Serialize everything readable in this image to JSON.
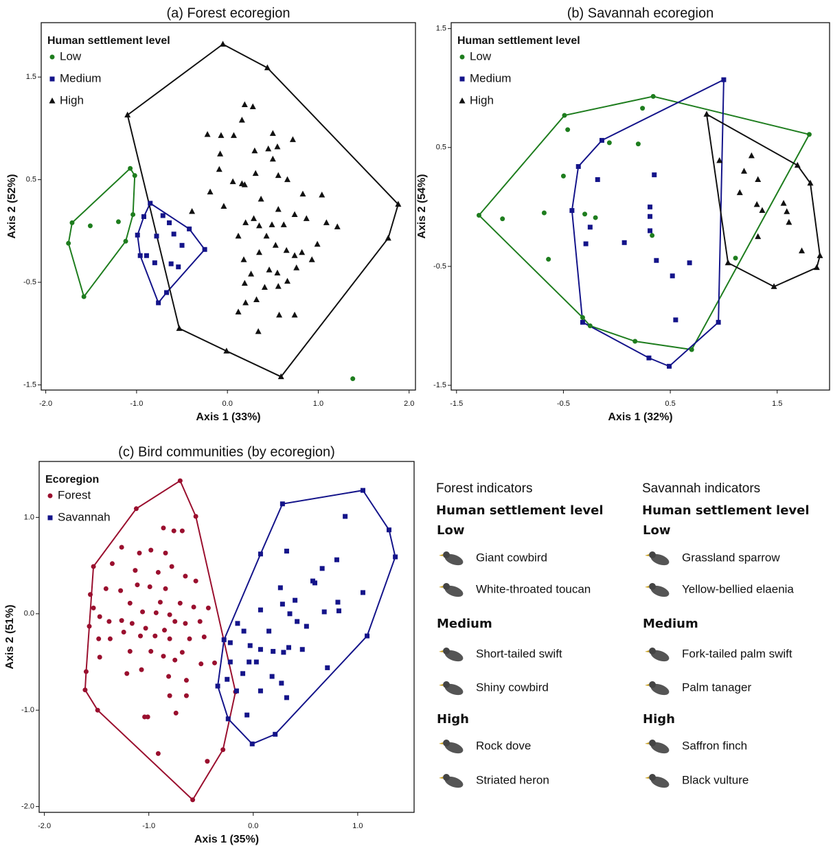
{
  "chart_data": [
    {
      "type": "scatter",
      "title": "(a) Forest ecoregion",
      "x_label": "Axis 1 (33%)",
      "y_label": "Axis 2 (52%)",
      "legend_title": "Human settlement level",
      "xlim": [
        -2.05,
        2.07
      ],
      "ylim": [
        -1.55,
        2.03
      ],
      "xticks": [
        {
          "value": -2,
          "label": "-2.0"
        },
        {
          "value": -1,
          "label": "-1.0"
        },
        {
          "value": 0,
          "label": "0.0"
        },
        {
          "value": 1,
          "label": "1.0"
        },
        {
          "value": 2,
          "label": "2.0"
        }
      ],
      "yticks": [
        1.5,
        0.5,
        -0.5,
        -1.5
      ],
      "series": [
        {
          "name": "Low",
          "color": "#1e7d1e",
          "marker": "circle",
          "x": [
            -1.07,
            -1.02,
            -1.04,
            -1.2,
            -1.51,
            -1.71,
            -1.75,
            -1.12,
            -1.58,
            1.38
          ],
          "y": [
            0.61,
            0.54,
            0.16,
            0.09,
            0.05,
            0.08,
            -0.12,
            -0.1,
            -0.64,
            -1.44
          ],
          "hull_x": [
            -1.07,
            -1.02,
            -1.04,
            -1.12,
            -1.58,
            -1.75,
            -1.71
          ],
          "hull_y": [
            0.61,
            0.54,
            0.16,
            -0.1,
            -0.64,
            -0.12,
            0.08
          ]
        },
        {
          "name": "Medium",
          "color": "#14148a",
          "marker": "square",
          "x": [
            -0.85,
            -0.92,
            -0.71,
            -0.64,
            -0.42,
            -0.99,
            -0.78,
            -0.59,
            -0.5,
            -0.25,
            -0.96,
            -0.89,
            -0.8,
            -0.62,
            -0.54,
            -0.67,
            -0.76
          ],
          "y": [
            0.27,
            0.14,
            0.15,
            0.08,
            0.02,
            -0.04,
            -0.05,
            -0.03,
            -0.14,
            -0.18,
            -0.24,
            -0.24,
            -0.31,
            -0.32,
            -0.35,
            -0.6,
            -0.7
          ],
          "hull_x": [
            -0.85,
            -0.42,
            -0.25,
            -0.67,
            -0.76,
            -0.96,
            -0.99,
            -0.92
          ],
          "hull_y": [
            0.27,
            0.02,
            -0.18,
            -0.6,
            -0.7,
            -0.24,
            -0.04,
            0.14
          ]
        },
        {
          "name": "High",
          "color": "#111111",
          "marker": "triangle",
          "x": [
            -0.05,
            0.44,
            1.88,
            1.77,
            0.59,
            -0.01,
            -0.53,
            -1.1,
            0.19,
            0.28,
            0.16,
            -0.22,
            -0.07,
            0.07,
            0.5,
            0.3,
            0.45,
            0.55,
            0.72,
            -0.08,
            0.5,
            -0.09,
            0.06,
            0.16,
            0.19,
            0.56,
            0.31,
            0.66,
            0.37,
            -0.19,
            0.83,
            1.04,
            -0.39,
            -0.04,
            0.2,
            0.35,
            0.49,
            0.62,
            0.56,
            0.74,
            0.87,
            1.09,
            1.21,
            0.29,
            0.12,
            0.43,
            0.53,
            0.65,
            0.74,
            0.82,
            0.18,
            0.35,
            0.93,
            0.99,
            0.46,
            0.55,
            0.26,
            0.19,
            0.41,
            0.56,
            0.66,
            0.76,
            0.32,
            0.2,
            0.57,
            0.74,
            0.12,
            0.34
          ],
          "y": [
            1.82,
            1.59,
            0.26,
            -0.07,
            -1.42,
            -1.17,
            -0.95,
            1.13,
            1.23,
            1.21,
            1.08,
            0.94,
            0.93,
            0.93,
            0.95,
            0.78,
            0.8,
            0.82,
            0.89,
            0.75,
            0.7,
            0.6,
            0.48,
            0.46,
            0.45,
            0.54,
            0.56,
            0.5,
            0.31,
            0.38,
            0.36,
            0.35,
            0.19,
            0.24,
            0.08,
            0.05,
            0.06,
            0.06,
            0.21,
            0.16,
            0.12,
            0.08,
            0.04,
            0.12,
            -0.05,
            -0.05,
            -0.14,
            -0.19,
            -0.24,
            -0.21,
            -0.28,
            -0.21,
            -0.28,
            -0.13,
            -0.38,
            -0.41,
            -0.42,
            -0.51,
            -0.55,
            -0.54,
            -0.49,
            -0.36,
            -0.67,
            -0.7,
            -0.82,
            -0.82,
            -0.79,
            -0.98
          ],
          "hull_x": [
            -0.05,
            0.44,
            1.88,
            1.77,
            0.59,
            -0.01,
            -0.53,
            -1.1
          ],
          "hull_y": [
            1.82,
            1.59,
            0.26,
            -0.07,
            -1.42,
            -1.17,
            -0.95,
            1.13
          ]
        }
      ]
    },
    {
      "type": "scatter",
      "title": "(b) Savannah ecoregion",
      "x_label": "Axis 1 (32%)",
      "y_label": "Axis 2 (54%)",
      "legend_title": "Human settlement level",
      "xlim": [
        -1.55,
        1.99
      ],
      "ylim": [
        -1.54,
        1.55
      ],
      "xticks": [
        -1.5,
        -0.5,
        0.5,
        1.5
      ],
      "yticks": [
        1.5,
        0.5,
        -0.5,
        -1.5
      ],
      "series": [
        {
          "name": "Low",
          "color": "#1e7d1e",
          "marker": "circle",
          "x": [
            -1.29,
            -1.07,
            -0.49,
            -0.46,
            0.34,
            0.24,
            -0.07,
            0.2,
            -0.5,
            -0.68,
            -0.3,
            -0.2,
            -0.64,
            0.33,
            -0.32,
            -0.25,
            0.17,
            0.7,
            1.11,
            1.8
          ],
          "y": [
            -0.07,
            -0.1,
            0.77,
            0.65,
            0.93,
            0.83,
            0.54,
            0.53,
            0.26,
            -0.05,
            -0.06,
            -0.09,
            -0.44,
            -0.24,
            -0.93,
            -1.0,
            -1.13,
            -1.2,
            -0.43,
            0.61
          ],
          "hull_x": [
            -1.29,
            -0.49,
            0.34,
            1.8,
            0.7,
            0.17,
            -0.25,
            -0.32
          ],
          "hull_y": [
            -0.07,
            0.77,
            0.93,
            0.61,
            -1.2,
            -1.13,
            -1.0,
            -0.93
          ]
        },
        {
          "name": "Medium",
          "color": "#14148a",
          "marker": "square",
          "x": [
            1.0,
            -0.14,
            -0.36,
            -0.18,
            0.35,
            0.31,
            0.31,
            -0.42,
            -0.25,
            0.31,
            0.07,
            -0.29,
            0.37,
            0.68,
            0.52,
            0.55,
            0.95,
            -0.32,
            0.3,
            0.49
          ],
          "y": [
            1.07,
            0.56,
            0.34,
            0.23,
            0.27,
            0.0,
            -0.08,
            -0.03,
            -0.17,
            -0.2,
            -0.3,
            -0.31,
            -0.45,
            -0.47,
            -0.58,
            -0.95,
            -0.97,
            -0.97,
            -1.27,
            -1.34
          ],
          "hull_x": [
            1.0,
            0.95,
            0.49,
            0.3,
            -0.32,
            -0.42,
            -0.36,
            -0.14
          ],
          "hull_y": [
            1.07,
            -0.97,
            -1.34,
            -1.27,
            -0.97,
            -0.03,
            0.34,
            0.56
          ]
        },
        {
          "name": "High",
          "color": "#111111",
          "marker": "triangle",
          "x": [
            0.84,
            1.69,
            1.81,
            1.9,
            1.87,
            1.47,
            1.04,
            0.96,
            1.26,
            1.19,
            1.32,
            1.15,
            1.31,
            1.56,
            1.59,
            1.36,
            1.61,
            1.32,
            1.73
          ],
          "y": [
            0.78,
            0.35,
            0.2,
            -0.41,
            -0.51,
            -0.67,
            -0.47,
            0.39,
            0.43,
            0.3,
            0.23,
            0.12,
            0.02,
            0.03,
            -0.04,
            -0.03,
            -0.13,
            -0.25,
            -0.37
          ],
          "hull_x": [
            0.84,
            1.69,
            1.81,
            1.9,
            1.87,
            1.47,
            1.04
          ],
          "hull_y": [
            0.78,
            0.35,
            0.2,
            -0.41,
            -0.51,
            -0.67,
            -0.47
          ]
        }
      ]
    },
    {
      "type": "scatter",
      "title": "(c) Bird communities (by ecoregion)",
      "x_label": "Axis 1 (35%)",
      "y_label": "Axis 2 (51%)",
      "legend_title": "Ecoregion",
      "xlim": [
        -2.05,
        1.54
      ],
      "ylim": [
        -2.06,
        1.58
      ],
      "xticks": [
        {
          "value": -2,
          "label": "-2.0"
        },
        {
          "value": -1,
          "label": "-1.0"
        },
        {
          "value": 0,
          "label": "0.0"
        },
        {
          "value": 1,
          "label": "1.0"
        }
      ],
      "yticks": [
        {
          "value": 1,
          "label": "1.0"
        },
        {
          "value": 0,
          "label": "0.0"
        },
        {
          "value": -1,
          "label": "-1.0"
        },
        {
          "value": -2,
          "label": "-2.0"
        }
      ],
      "series": [
        {
          "name": "Forest",
          "color": "#9a0f2e",
          "marker": "circle",
          "x": [
            -0.7,
            -0.55,
            -0.17,
            -0.29,
            -0.58,
            -1.49,
            -1.61,
            -1.6,
            -1.53,
            -1.12,
            -0.86,
            -0.76,
            -0.68,
            -1.26,
            -1.09,
            -0.98,
            -0.84,
            -0.78,
            -1.35,
            -1.13,
            -0.91,
            -0.65,
            -0.55,
            -1.11,
            -0.99,
            -0.84,
            -1.41,
            -1.27,
            -0.89,
            -0.7,
            -1.56,
            -1.53,
            -1.18,
            -1.06,
            -0.93,
            -0.8,
            -0.57,
            -0.43,
            -1.47,
            -1.38,
            -1.26,
            -1.16,
            -1.03,
            -0.85,
            -0.75,
            -0.65,
            -0.51,
            -1.57,
            -1.48,
            -1.37,
            -1.24,
            -1.08,
            -0.94,
            -0.8,
            -0.61,
            -0.47,
            -1.18,
            -0.98,
            -0.86,
            -0.75,
            -0.68,
            -1.47,
            -1.21,
            -1.07,
            -0.81,
            -0.64,
            -0.5,
            -0.37,
            -0.8,
            -0.64,
            -1.04,
            -1.01,
            -0.74,
            -0.91,
            -0.44
          ],
          "y": [
            1.38,
            1.01,
            -0.81,
            -1.41,
            -1.93,
            -1.0,
            -0.79,
            -0.6,
            0.49,
            1.09,
            0.89,
            0.86,
            0.86,
            0.69,
            0.63,
            0.66,
            0.63,
            0.49,
            0.52,
            0.45,
            0.43,
            0.39,
            0.34,
            0.3,
            0.28,
            0.26,
            0.26,
            0.24,
            0.12,
            0.11,
            0.2,
            0.06,
            0.11,
            0.02,
            0.01,
            -0.01,
            0.07,
            0.06,
            -0.03,
            -0.08,
            -0.07,
            -0.1,
            -0.15,
            -0.17,
            -0.08,
            -0.1,
            -0.08,
            -0.13,
            -0.26,
            -0.26,
            -0.19,
            -0.23,
            -0.23,
            -0.26,
            -0.26,
            -0.24,
            -0.39,
            -0.39,
            -0.44,
            -0.48,
            -0.4,
            -0.45,
            -0.62,
            -0.58,
            -0.65,
            -0.69,
            -0.52,
            -0.51,
            -0.85,
            -0.85,
            -1.07,
            -1.07,
            -1.03,
            -1.45,
            -1.53
          ],
          "hull_x": [
            -0.7,
            -0.55,
            -0.17,
            -0.29,
            -0.58,
            -1.49,
            -1.61,
            -1.6,
            -1.53,
            -1.12
          ],
          "hull_y": [
            1.38,
            1.01,
            -0.81,
            -1.41,
            -1.93,
            -1.0,
            -0.79,
            -0.6,
            0.49,
            1.09
          ]
        },
        {
          "name": "Savannah",
          "color": "#14148a",
          "marker": "square",
          "x": [
            1.05,
            1.3,
            1.36,
            1.09,
            0.21,
            -0.01,
            -0.24,
            -0.34,
            -0.28,
            0.07,
            0.28,
            0.88,
            0.32,
            0.8,
            0.66,
            0.57,
            0.59,
            0.26,
            0.4,
            0.28,
            0.07,
            0.35,
            0.42,
            -0.15,
            -0.09,
            0.15,
            0.51,
            0.68,
            0.81,
            1.05,
            -0.22,
            -0.03,
            0.07,
            0.19,
            0.29,
            0.34,
            0.47,
            -0.22,
            -0.04,
            0.03,
            -0.1,
            0.18,
            0.27,
            -0.25,
            -0.16,
            0.07,
            0.32,
            -0.06,
            0.71,
            0.82
          ],
          "y": [
            1.28,
            0.87,
            0.59,
            -0.23,
            -1.25,
            -1.35,
            -1.09,
            -0.75,
            -0.27,
            0.62,
            1.14,
            1.01,
            0.65,
            0.56,
            0.47,
            0.34,
            0.32,
            0.27,
            0.14,
            0.1,
            0.04,
            0.0,
            -0.08,
            -0.1,
            -0.18,
            -0.18,
            -0.13,
            0.02,
            0.12,
            0.22,
            -0.3,
            -0.33,
            -0.37,
            -0.39,
            -0.4,
            -0.35,
            -0.37,
            -0.5,
            -0.5,
            -0.5,
            -0.62,
            -0.65,
            -0.72,
            -0.68,
            -0.8,
            -0.8,
            -0.87,
            -1.05,
            -0.56,
            0.03
          ],
          "hull_x": [
            1.05,
            1.3,
            1.36,
            1.09,
            0.21,
            -0.01,
            -0.24,
            -0.34,
            -0.28,
            0.07,
            0.28
          ],
          "hull_y": [
            1.28,
            0.87,
            0.59,
            -0.23,
            -1.25,
            -1.35,
            -1.09,
            -0.75,
            -0.27,
            0.62,
            1.14
          ]
        }
      ]
    }
  ],
  "indicators": [
    {
      "title": "Forest indicators",
      "level_title": "Human settlement level",
      "groups": [
        {
          "level": "Low",
          "species": [
            "Giant cowbird",
            "White-throated toucan"
          ]
        },
        {
          "level": "Medium",
          "species": [
            "Short-tailed swift",
            "Shiny cowbird"
          ]
        },
        {
          "level": "High",
          "species": [
            "Rock dove",
            "Striated heron"
          ]
        }
      ]
    },
    {
      "title": "Savannah indicators",
      "level_title": "Human settlement level",
      "groups": [
        {
          "level": "Low",
          "species": [
            "Grassland sparrow",
            "Yellow-bellied elaenia"
          ]
        },
        {
          "level": "Medium",
          "species": [
            "Fork-tailed palm swift",
            "Palm tanager"
          ]
        },
        {
          "level": "High",
          "species": [
            "Saffron finch",
            "Black vulture"
          ]
        }
      ]
    }
  ]
}
